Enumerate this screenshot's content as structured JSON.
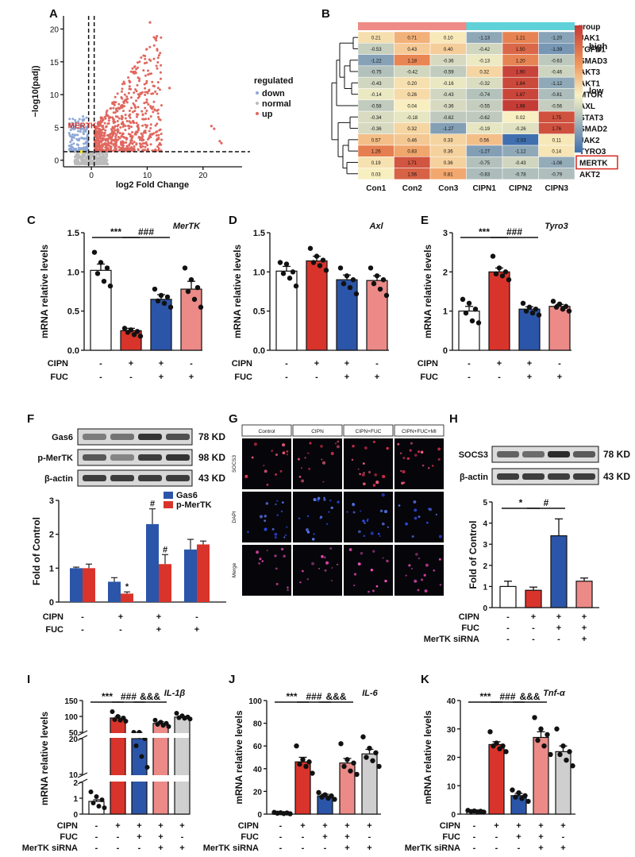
{
  "colors": {
    "red": "#d9342b",
    "blue": "#2b55a8",
    "pink": "#ec8a87",
    "gray": "#cfcfcf",
    "white": "#ffffff",
    "black": "#111111",
    "hm_high": "#c43a35",
    "hm_mid": "#f8f2c4",
    "hm_low": "#3f6fae",
    "group_con": "#ee8b86",
    "group_cipn": "#5fd1d8"
  },
  "chart_data": [
    {
      "panel": "A",
      "type": "scatter",
      "ylabel": "−log10(padj)",
      "xlabel": "log2 Fold Change",
      "xticks": [
        "0",
        "10",
        "20"
      ],
      "yticks": [
        "0",
        "5",
        "10",
        "15",
        "20"
      ],
      "xlim": [
        -5,
        27
      ],
      "ylim": [
        -1,
        22
      ],
      "legend_title": "regulated",
      "legend": [
        "down",
        "normal",
        "up"
      ],
      "annotation": "MERTK",
      "threshold_lines": {
        "x": [
          -0.5,
          0.5
        ],
        "y": 1.3
      }
    },
    {
      "panel": "B",
      "type": "heatmap",
      "group_label": "group",
      "legend": [
        "high",
        "low"
      ],
      "columns": [
        "Con1",
        "Con2",
        "Con3",
        "CIPN1",
        "CIPN2",
        "CIPN3"
      ],
      "rows": [
        {
          "name": "JAK1",
          "values": [
            "0.21",
            "0.71",
            "0.10",
            "-1.13",
            "1.21",
            "-1.20"
          ]
        },
        {
          "name": "TGFB1",
          "values": [
            "-0.53",
            "0.43",
            "0.40",
            "-0.42",
            "1.50",
            "-1.39"
          ]
        },
        {
          "name": "SMAD3",
          "values": [
            "-1.22",
            "1.18",
            "-0.36",
            "-0.13",
            "1.20",
            "-0.63"
          ]
        },
        {
          "name": "AKT3",
          "values": [
            "-0.75",
            "-0.42",
            "-0.59",
            "0.32",
            "1.90",
            "-0.46"
          ]
        },
        {
          "name": "AKT1",
          "values": [
            "-0.43",
            "0.20",
            "-0.16",
            "-0.32",
            "1.84",
            "-1.12"
          ]
        },
        {
          "name": "MTOR",
          "values": [
            "-0.14",
            "0.26",
            "-0.43",
            "-0.74",
            "1.87",
            "-0.81"
          ]
        },
        {
          "name": "AXL",
          "values": [
            "-0.58",
            "0.04",
            "-0.36",
            "-0.55",
            "1.98",
            "-0.56"
          ]
        },
        {
          "name": "STAT3",
          "values": [
            "-0.34",
            "-0.18",
            "-0.62",
            "-0.62",
            "0.02",
            "1.75"
          ]
        },
        {
          "name": "SMAD2",
          "values": [
            "-0.36",
            "0.32",
            "-1.27",
            "-0.19",
            "-0.26",
            "1.76"
          ]
        },
        {
          "name": "JAK2",
          "values": [
            "0.57",
            "0.46",
            "0.33",
            "0.56",
            "-2.03",
            "0.11"
          ]
        },
        {
          "name": "TYRO3",
          "values": [
            "1.26",
            "0.83",
            "0.36",
            "-1.27",
            "-1.12",
            "0.14"
          ]
        },
        {
          "name": "MERTK",
          "values": [
            "0.19",
            "1.71",
            "0.36",
            "-0.75",
            "-0.43",
            "-1.08"
          ]
        },
        {
          "name": "AKT2",
          "values": [
            "0.03",
            "1.56",
            "0.81",
            "-0.83",
            "-0.78",
            "-0.79"
          ]
        }
      ]
    },
    {
      "panel": "C",
      "type": "bar",
      "title": "MerTK",
      "ylabel": "mRNA relative levels",
      "ylim": [
        0,
        1.5
      ],
      "yticks": [
        "0.0",
        "0.5",
        "1.0",
        "1.5"
      ],
      "values": [
        1.02,
        0.25,
        0.65,
        0.78
      ],
      "errors": [
        0.08,
        0.03,
        0.06,
        0.1
      ],
      "colors": [
        "white",
        "red",
        "blue",
        "pink"
      ],
      "points": [
        [
          1.25,
          1.12,
          1.05,
          0.98,
          0.88,
          0.82
        ],
        [
          0.28,
          0.26,
          0.24,
          0.23,
          0.2,
          0.18
        ],
        [
          0.78,
          0.7,
          0.68,
          0.63,
          0.6,
          0.55
        ],
        [
          1.05,
          0.9,
          0.8,
          0.75,
          0.65,
          0.55
        ]
      ],
      "sig": [
        "***",
        "###"
      ],
      "conditions": [
        {
          "label": "CIPN",
          "signs": [
            "-",
            "+",
            "+",
            "-"
          ]
        },
        {
          "label": "FUC",
          "signs": [
            "-",
            "-",
            "+",
            "+"
          ]
        }
      ]
    },
    {
      "panel": "D",
      "type": "bar",
      "title": "Axl",
      "ylabel": "mRNA relative levels",
      "ylim": [
        0,
        1.5
      ],
      "yticks": [
        "0.0",
        "0.5",
        "1.0",
        "1.5"
      ],
      "values": [
        1.01,
        1.14,
        0.9,
        0.89
      ],
      "errors": [
        0.06,
        0.06,
        0.06,
        0.06
      ],
      "colors": [
        "white",
        "red",
        "blue",
        "pink"
      ],
      "points": [
        [
          1.12,
          1.1,
          1.0,
          0.98,
          0.92,
          0.82
        ],
        [
          1.3,
          1.2,
          1.15,
          1.12,
          1.08,
          1.02
        ],
        [
          1.05,
          0.95,
          0.9,
          0.85,
          0.8,
          0.72
        ],
        [
          1.05,
          0.95,
          0.9,
          0.85,
          0.78,
          0.7
        ]
      ],
      "sig": [],
      "conditions": [
        {
          "label": "CIPN",
          "signs": [
            "-",
            "+",
            "+",
            "-"
          ]
        },
        {
          "label": "FUC",
          "signs": [
            "-",
            "-",
            "+",
            "+"
          ]
        }
      ]
    },
    {
      "panel": "E",
      "type": "bar",
      "title": "Tyro3",
      "ylabel": "mRNA relative levels",
      "ylim": [
        0,
        3
      ],
      "yticks": [
        "0",
        "1",
        "2",
        "3"
      ],
      "values": [
        1.0,
        2.0,
        1.05,
        1.12
      ],
      "errors": [
        0.12,
        0.1,
        0.06,
        0.05
      ],
      "colors": [
        "white",
        "red",
        "blue",
        "pink"
      ],
      "points": [
        [
          1.3,
          1.2,
          1.05,
          0.95,
          0.75,
          0.7
        ],
        [
          2.4,
          2.1,
          2.0,
          1.95,
          1.9,
          1.8
        ],
        [
          1.2,
          1.1,
          1.05,
          1.0,
          0.95,
          0.9
        ],
        [
          1.25,
          1.18,
          1.12,
          1.1,
          1.05,
          1.0
        ]
      ],
      "sig": [
        "***",
        "###"
      ],
      "conditions": [
        {
          "label": "CIPN",
          "signs": [
            "-",
            "+",
            "+",
            "-"
          ]
        },
        {
          "label": "FUC",
          "signs": [
            "-",
            "-",
            "+",
            "+"
          ]
        }
      ]
    },
    {
      "panel": "F",
      "type": "bar",
      "ylabel": "Fold of Control",
      "ylim": [
        0,
        3
      ],
      "yticks": [
        "0",
        "1",
        "2",
        "3"
      ],
      "series": [
        {
          "name": "Gas6",
          "values": [
            1.0,
            0.6,
            2.3,
            1.55
          ],
          "errors": [
            0.03,
            0.12,
            0.45,
            0.3
          ]
        },
        {
          "name": "p-MerTK",
          "values": [
            1.0,
            0.25,
            1.12,
            1.7
          ],
          "errors": [
            0.12,
            0.05,
            0.28,
            0.1
          ]
        }
      ],
      "marks": [
        {
          "group": 1,
          "series": 1,
          "text": "*"
        },
        {
          "group": 2,
          "series": 0,
          "text": "#"
        },
        {
          "group": 2,
          "series": 1,
          "text": "#"
        }
      ],
      "conditions": [
        {
          "label": "CIPN",
          "signs": [
            "-",
            "+",
            "+",
            "-"
          ]
        },
        {
          "label": "FUC",
          "signs": [
            "-",
            "-",
            "+",
            "+"
          ]
        }
      ]
    },
    {
      "panel": "H",
      "type": "bar",
      "ylabel": "Fold of Control",
      "ylim": [
        0,
        5
      ],
      "yticks": [
        "0",
        "1",
        "2",
        "3",
        "4",
        "5"
      ],
      "values": [
        1.0,
        0.82,
        3.4,
        1.25
      ],
      "errors": [
        0.25,
        0.15,
        0.8,
        0.15
      ],
      "colors": [
        "white",
        "red",
        "blue",
        "pink"
      ],
      "sig": [
        "*",
        "#"
      ],
      "conditions": [
        {
          "label": "CIPN",
          "signs": [
            "-",
            "+",
            "+",
            "+"
          ]
        },
        {
          "label": "FUC",
          "signs": [
            "-",
            "-",
            "+",
            "+"
          ]
        },
        {
          "label": "MerTK siRNA",
          "signs": [
            "-",
            "-",
            "-",
            "+"
          ]
        }
      ]
    },
    {
      "panel": "I",
      "type": "bar",
      "title": "IL-1β",
      "ylabel": "mRNA relative levels",
      "yticks": [
        "0",
        "1",
        "2",
        "10",
        "20",
        "50",
        "100",
        "150"
      ],
      "values": [
        0.8,
        95,
        20,
        78,
        98
      ],
      "errors": [
        0.1,
        5,
        3,
        5,
        3
      ],
      "colors": [
        "white",
        "red",
        "blue",
        "pink",
        "gray"
      ],
      "points": [
        [
          1.4,
          1.1,
          0.9,
          0.7,
          0.5,
          0.4
        ],
        [
          115,
          100,
          95,
          90,
          88,
          85
        ],
        [
          28,
          23,
          20,
          18,
          15,
          12
        ],
        [
          88,
          82,
          78,
          75,
          72,
          68
        ],
        [
          110,
          102,
          98,
          96,
          94,
          92
        ]
      ],
      "sig": [
        "***",
        "###",
        "&&&"
      ],
      "conditions": [
        {
          "label": "CIPN",
          "signs": [
            "-",
            "+",
            "+",
            "+",
            "+"
          ]
        },
        {
          "label": "FUC",
          "signs": [
            "-",
            "-",
            "+",
            "+",
            "-"
          ]
        },
        {
          "label": "MerTK siRNA",
          "signs": [
            "-",
            "-",
            "-",
            "+",
            "+"
          ]
        }
      ]
    },
    {
      "panel": "J",
      "type": "bar",
      "title": "IL-6",
      "ylabel": "mRNA relative levels",
      "ylim": [
        0,
        100
      ],
      "yticks": [
        "0",
        "20",
        "40",
        "60",
        "80",
        "100"
      ],
      "values": [
        1,
        46,
        16,
        45,
        53
      ],
      "errors": [
        0.5,
        4,
        1.5,
        4,
        4
      ],
      "colors": [
        "white",
        "red",
        "blue",
        "pink",
        "gray"
      ],
      "points": [
        [
          1.5,
          1.2,
          1,
          0.8,
          0.5,
          0.3
        ],
        [
          60,
          48,
          46,
          44,
          42,
          36
        ],
        [
          19,
          17,
          16,
          15,
          14,
          13
        ],
        [
          62,
          48,
          45,
          42,
          38,
          35
        ],
        [
          68,
          58,
          54,
          50,
          47,
          42
        ]
      ],
      "sig": [
        "***",
        "###",
        "&&&"
      ],
      "conditions": [
        {
          "label": "CIPN",
          "signs": [
            "-",
            "+",
            "+",
            "+",
            "+"
          ]
        },
        {
          "label": "FUC",
          "signs": [
            "-",
            "-",
            "+",
            "+",
            "-"
          ]
        },
        {
          "label": "MerTK siRNA",
          "signs": [
            "-",
            "-",
            "-",
            "+",
            "+"
          ]
        }
      ]
    },
    {
      "panel": "K",
      "type": "bar",
      "title": "Tnf-α",
      "ylabel": "mRNA relative levels",
      "ylim": [
        0,
        40
      ],
      "yticks": [
        "0",
        "10",
        "20",
        "30",
        "40"
      ],
      "values": [
        1,
        24.5,
        6.5,
        27,
        22
      ],
      "errors": [
        0.2,
        1,
        0.8,
        2,
        2
      ],
      "colors": [
        "white",
        "red",
        "blue",
        "pink",
        "gray"
      ],
      "points": [
        [
          1.3,
          1.1,
          1,
          0.9,
          0.8,
          0.7
        ],
        [
          29,
          25,
          24,
          24,
          23,
          22
        ],
        [
          8.5,
          7.5,
          6.5,
          6,
          5.5,
          4.5
        ],
        [
          34,
          30,
          28,
          26,
          24,
          21
        ],
        [
          30,
          24,
          22,
          21,
          19,
          17
        ]
      ],
      "sig": [
        "***",
        "###",
        "&&&"
      ],
      "conditions": [
        {
          "label": "CIPN",
          "signs": [
            "-",
            "+",
            "+",
            "+",
            "+"
          ]
        },
        {
          "label": "FUC",
          "signs": [
            "-",
            "-",
            "+",
            "+",
            "-"
          ]
        },
        {
          "label": "MerTK siRNA",
          "signs": [
            "-",
            "-",
            "-",
            "+",
            "+"
          ]
        }
      ]
    }
  ],
  "panels": {
    "A": "A",
    "B": "B",
    "C": "C",
    "D": "D",
    "E": "E",
    "F": "F",
    "G": "G",
    "H": "H",
    "I": "I",
    "J": "J",
    "K": "K"
  },
  "blot_F": {
    "bands": [
      "Gas6",
      "p-MerTK",
      "β-actin"
    ],
    "sizes": [
      "78 KD",
      "98 KD",
      "43 KD"
    ]
  },
  "blot_H": {
    "bands": [
      "SOCS3",
      "β-actin"
    ],
    "sizes": [
      "78 KD",
      "43 KD"
    ]
  },
  "micrograph_G": {
    "columns": [
      "Control",
      "CIPN",
      "CIPN+FUC",
      "CIPN+FUC+MI"
    ],
    "rows": [
      "SOCS3",
      "DAPI",
      "Merge"
    ]
  }
}
